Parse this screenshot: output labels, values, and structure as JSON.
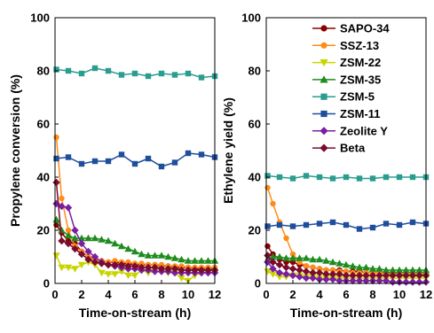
{
  "chart_data": [
    {
      "type": "line",
      "xlabel": "Time-on-stream (h)",
      "ylabel": "Propylene conversion (%)",
      "xlim": [
        0,
        12
      ],
      "ylim": [
        0,
        100
      ],
      "xticks": [
        0,
        2,
        4,
        6,
        8,
        10,
        12
      ],
      "yticks": [
        0,
        20,
        40,
        60,
        80,
        100
      ],
      "grid": false,
      "series": [
        {
          "name": "SAPO-34",
          "color": "#8b0000",
          "marker": "circle",
          "x": [
            0.1,
            0.5,
            1,
            1.5,
            2,
            2.5,
            3,
            3.5,
            4,
            4.5,
            5,
            5.5,
            6,
            6.5,
            7,
            7.5,
            8,
            8.5,
            9,
            9.5,
            10,
            10.5,
            11,
            11.5,
            12
          ],
          "y": [
            22,
            19,
            16,
            15,
            12,
            10,
            9,
            8.5,
            8,
            8,
            7.5,
            7.5,
            7,
            7,
            7,
            7,
            6.5,
            6.5,
            6,
            6,
            6,
            5.5,
            5.5,
            5.5,
            5.5
          ]
        },
        {
          "name": "SSZ-13",
          "color": "#ff8c1a",
          "marker": "circle",
          "x": [
            0.1,
            0.5,
            1,
            1.5,
            2,
            2.5,
            3,
            3.5,
            4,
            4.5,
            5,
            5.5,
            6,
            6.5,
            7,
            7.5,
            8,
            8.5,
            9,
            9.5,
            10,
            10.5,
            11,
            11.5,
            12
          ],
          "y": [
            55,
            32,
            20,
            14,
            12,
            10,
            9,
            8.5,
            8,
            8.5,
            8,
            8,
            7.5,
            7.5,
            7,
            7,
            7,
            6.5,
            6.5,
            6.5,
            6,
            6,
            6,
            6,
            6
          ]
        },
        {
          "name": "ZSM-22",
          "color": "#c8d400",
          "marker": "triangle-down",
          "x": [
            0.1,
            0.5,
            1,
            1.5,
            2,
            2.5,
            3,
            3.5,
            4,
            4.5,
            5,
            5.5,
            6,
            6.5,
            7,
            7.5,
            8,
            8.5,
            9,
            9.5,
            10,
            10.5,
            11,
            11.5,
            12
          ],
          "y": [
            10.5,
            6,
            6,
            5.5,
            7,
            8,
            7,
            4,
            3.5,
            3.5,
            4.5,
            3,
            3,
            5,
            4,
            4.5,
            4.5,
            4,
            4,
            2,
            1,
            3,
            4,
            4.5,
            4
          ]
        },
        {
          "name": "ZSM-35",
          "color": "#1e8c1e",
          "marker": "triangle-up",
          "x": [
            0.1,
            0.5,
            1,
            1.5,
            2,
            2.5,
            3,
            3.5,
            4,
            4.5,
            5,
            5.5,
            6,
            6.5,
            7,
            7.5,
            8,
            8.5,
            9,
            9.5,
            10,
            10.5,
            11,
            11.5,
            12
          ],
          "y": [
            24,
            20,
            18,
            17,
            17,
            17,
            17,
            16.5,
            16,
            15,
            14,
            13,
            12,
            11,
            10.5,
            10.5,
            10.5,
            10,
            9.5,
            9,
            8.5,
            8.5,
            8.5,
            8.5,
            8.5
          ]
        },
        {
          "name": "ZSM-5",
          "color": "#2a9d8f",
          "marker": "square",
          "x": [
            0.1,
            1,
            2,
            3,
            4,
            5,
            6,
            7,
            8,
            9,
            10,
            11,
            12
          ],
          "y": [
            80.5,
            80,
            79,
            81,
            80,
            78.5,
            79,
            78,
            79,
            78.5,
            79,
            77.5,
            78
          ]
        },
        {
          "name": "ZSM-11",
          "color": "#1f4e9c",
          "marker": "square",
          "x": [
            0.1,
            1,
            2,
            3,
            4,
            5,
            6,
            7,
            8,
            9,
            10,
            11,
            12
          ],
          "y": [
            47,
            47.5,
            45,
            46,
            46,
            48.5,
            45,
            47,
            44,
            45.5,
            49,
            48.5,
            47.5
          ]
        },
        {
          "name": "Zeolite Y",
          "color": "#7b1fa2",
          "marker": "diamond",
          "x": [
            0.1,
            0.5,
            1,
            1.5,
            2,
            2.5,
            3,
            3.5,
            4,
            4.5,
            5,
            5.5,
            6,
            6.5,
            7,
            7.5,
            8,
            8.5,
            9,
            9.5,
            10,
            10.5,
            11,
            11.5,
            12
          ],
          "y": [
            30,
            29,
            28.5,
            20,
            15,
            12,
            10,
            8,
            7,
            6.5,
            6,
            5.5,
            5.5,
            5,
            5,
            4.5,
            4.5,
            4.5,
            4,
            4,
            4,
            4,
            4,
            4,
            4
          ]
        },
        {
          "name": "Beta",
          "color": "#7a0c2e",
          "marker": "diamond",
          "x": [
            0.1,
            0.5,
            1,
            1.5,
            2,
            2.5,
            3,
            3.5,
            4,
            4.5,
            5,
            5.5,
            6,
            6.5,
            7,
            7.5,
            8,
            8.5,
            9,
            9.5,
            10,
            10.5,
            11,
            11.5,
            12
          ],
          "y": [
            38,
            16,
            15,
            13,
            11,
            9,
            8,
            7.5,
            7,
            7,
            7,
            6.5,
            6.5,
            6,
            6,
            6,
            5.5,
            5.5,
            5.5,
            5,
            5,
            5,
            5,
            5,
            5
          ]
        }
      ]
    },
    {
      "type": "line",
      "xlabel": "Time-on-stream (h)",
      "ylabel": "Ethylene yield (%)",
      "xlim": [
        0,
        12
      ],
      "ylim": [
        0,
        100
      ],
      "xticks": [
        0,
        2,
        4,
        6,
        8,
        10,
        12
      ],
      "yticks": [
        0,
        20,
        40,
        60,
        80,
        100
      ],
      "grid": false,
      "legend": "top-right",
      "series": [
        {
          "name": "SAPO-34",
          "color": "#8b0000",
          "marker": "circle",
          "x": [
            0.1,
            0.5,
            1,
            1.5,
            2,
            2.5,
            3,
            3.5,
            4,
            4.5,
            5,
            5.5,
            6,
            6.5,
            7,
            7.5,
            8,
            8.5,
            9,
            9.5,
            10,
            10.5,
            11,
            11.5,
            12
          ],
          "y": [
            14,
            11,
            9,
            8,
            8,
            7,
            6.5,
            6,
            5.5,
            5,
            5,
            5,
            4.5,
            4.5,
            4.5,
            4,
            4,
            4,
            4,
            4,
            3.5,
            3.5,
            3.5,
            3.5,
            3.5
          ]
        },
        {
          "name": "SSZ-13",
          "color": "#ff8c1a",
          "marker": "circle",
          "x": [
            0.1,
            0.5,
            1,
            1.5,
            2,
            2.5,
            3,
            3.5,
            4,
            4.5,
            5,
            5.5,
            6,
            6.5,
            7,
            7.5,
            8,
            8.5,
            9,
            9.5,
            10,
            10.5,
            11,
            11.5,
            12
          ],
          "y": [
            36,
            30,
            23,
            17,
            11,
            8,
            6.5,
            6,
            5.5,
            5,
            5,
            4.5,
            4.5,
            4,
            4,
            4,
            4,
            4,
            3.5,
            3.5,
            3.5,
            3.5,
            3.5,
            3.5,
            3.5
          ]
        },
        {
          "name": "ZSM-22",
          "color": "#c8d400",
          "marker": "triangle-down",
          "x": [
            0.1,
            0.5,
            1,
            1.5,
            2,
            2.5,
            3,
            3.5,
            4,
            4.5,
            5,
            5.5,
            6,
            6.5,
            7,
            7.5,
            8,
            8.5,
            9,
            9.5,
            10,
            10.5,
            11,
            11.5,
            12
          ],
          "y": [
            4.5,
            3.5,
            2.5,
            2.5,
            3,
            3,
            2.5,
            2.5,
            2,
            2,
            2,
            2,
            2,
            2,
            2,
            2,
            2,
            2,
            2,
            2,
            2,
            2,
            2,
            2,
            2
          ]
        },
        {
          "name": "ZSM-35",
          "color": "#1e8c1e",
          "marker": "triangle-up",
          "x": [
            0.1,
            0.5,
            1,
            1.5,
            2,
            2.5,
            3,
            3.5,
            4,
            4.5,
            5,
            5.5,
            6,
            6.5,
            7,
            7.5,
            8,
            8.5,
            9,
            9.5,
            10,
            10.5,
            11,
            11.5,
            12
          ],
          "y": [
            9,
            10,
            10,
            9.5,
            9.5,
            9.5,
            9.5,
            9,
            9,
            8.5,
            8,
            7.5,
            7,
            6.5,
            6,
            6,
            5.5,
            5.5,
            5,
            5,
            5,
            5,
            5,
            5,
            5
          ]
        },
        {
          "name": "ZSM-5",
          "color": "#2a9d8f",
          "marker": "square",
          "x": [
            0.1,
            1,
            2,
            3,
            4,
            5,
            6,
            7,
            8,
            9,
            10,
            11,
            12
          ],
          "y": [
            40.5,
            40,
            39.5,
            40.5,
            40,
            39.5,
            40,
            39.5,
            39.5,
            40,
            40,
            40,
            40
          ]
        },
        {
          "name": "ZSM-11",
          "color": "#1f4e9c",
          "marker": "square",
          "x": [
            0.1,
            1,
            2,
            3,
            4,
            5,
            6,
            7,
            8,
            9,
            10,
            11,
            12
          ],
          "y": [
            21.5,
            22,
            21.5,
            22,
            22.5,
            23,
            22,
            20.5,
            21,
            22.5,
            22,
            23,
            22.5
          ]
        },
        {
          "name": "Zeolite Y",
          "color": "#7b1fa2",
          "marker": "diamond",
          "x": [
            0.1,
            0.5,
            1,
            1.5,
            2,
            2.5,
            3,
            3.5,
            4,
            4.5,
            5,
            5.5,
            6,
            6.5,
            7,
            7.5,
            8,
            8.5,
            9,
            9.5,
            10,
            10.5,
            11,
            11.5,
            12
          ],
          "y": [
            8,
            5.5,
            4,
            3.5,
            3,
            2.5,
            2,
            2,
            1.5,
            1.5,
            1.5,
            1,
            1,
            1,
            1,
            1,
            1,
            1,
            1,
            0.5,
            0.5,
            0.5,
            0.5,
            0.5,
            0.5
          ]
        },
        {
          "name": "Beta",
          "color": "#7a0c2e",
          "marker": "diamond",
          "x": [
            0.1,
            0.5,
            1,
            1.5,
            2,
            2.5,
            3,
            3.5,
            4,
            4.5,
            5,
            5.5,
            6,
            6.5,
            7,
            7.5,
            8,
            8.5,
            9,
            9.5,
            10,
            10.5,
            11,
            11.5,
            12
          ],
          "y": [
            10.5,
            8,
            7,
            6,
            5.5,
            5,
            4.5,
            4,
            4,
            3.5,
            3.5,
            3.5,
            3,
            3,
            3,
            3,
            3,
            3,
            3,
            3,
            3,
            3,
            3,
            3,
            3
          ]
        }
      ]
    }
  ]
}
